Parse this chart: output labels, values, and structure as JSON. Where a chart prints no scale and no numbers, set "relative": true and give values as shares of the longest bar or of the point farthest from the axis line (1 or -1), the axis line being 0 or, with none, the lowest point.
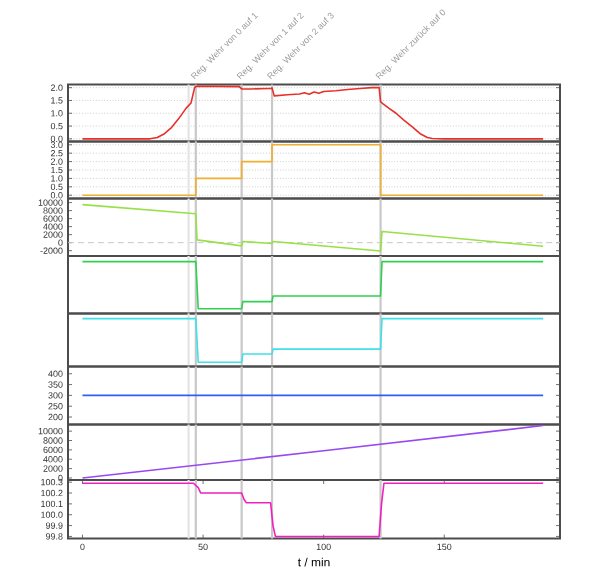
{
  "chart_data": [
    {
      "type": "line",
      "xlim": [
        -6,
        198
      ],
      "ylim": [
        -0.1,
        2.12
      ],
      "yticks": [
        {
          "value": 0,
          "label": "0.0"
        },
        {
          "value": 0.5,
          "label": "0.5"
        },
        {
          "value": 1,
          "label": "1.0"
        },
        {
          "value": 1.5,
          "label": "1.5"
        },
        {
          "value": 2,
          "label": "2.0"
        }
      ],
      "grid": "y",
      "tick_labels": "y",
      "series": [
        {
          "color": "#e8302a",
          "x": [
            0,
            28,
            31,
            34,
            37,
            40,
            43,
            45,
            46.5,
            47,
            55,
            65,
            66,
            70,
            77,
            78,
            78.6,
            79.5,
            85,
            90,
            92,
            94,
            96,
            98,
            100,
            105,
            110,
            115,
            120,
            123,
            123.6,
            124.5,
            127,
            130,
            133,
            137,
            140,
            143,
            145,
            150,
            170,
            191
          ],
          "values": [
            0,
            0,
            0.05,
            0.2,
            0.45,
            0.8,
            1.2,
            1.4,
            2.0,
            2.05,
            2.05,
            2.04,
            1.95,
            1.95,
            1.97,
            1.97,
            1.99,
            1.68,
            1.72,
            1.75,
            1.8,
            1.74,
            1.83,
            1.78,
            1.85,
            1.88,
            1.93,
            1.97,
            2.0,
            2.0,
            1.45,
            1.38,
            1.2,
            1.0,
            0.75,
            0.45,
            0.2,
            0.05,
            0.01,
            0,
            0,
            0
          ]
        }
      ],
      "ref_lines": [
        {
          "axis": "x",
          "value": 44,
          "color": "#e4e4e4"
        },
        {
          "axis": "x",
          "value": 47,
          "label": "Reg. Wehr von 0 auf 1",
          "color": "#c8c8c8"
        },
        {
          "axis": "x",
          "value": 66,
          "label": "Reg. Wehr von 1 auf 2",
          "color": "#c8c8c8"
        },
        {
          "axis": "x",
          "value": 78.6,
          "label": "Reg. Wehr von 2 auf 3",
          "color": "#c8c8c8"
        },
        {
          "axis": "x",
          "value": 123.6,
          "label": "Reg. Wehr zurück auf 0",
          "color": "#c8c8c8"
        }
      ]
    },
    {
      "type": "step",
      "xlim": [
        -6,
        198
      ],
      "ylim": [
        -0.2,
        3.2
      ],
      "yticks": [
        {
          "value": 0,
          "label": "0.0"
        },
        {
          "value": 0.5,
          "label": "0.5"
        },
        {
          "value": 1,
          "label": "1.0"
        },
        {
          "value": 1.5,
          "label": "1.5"
        },
        {
          "value": 2,
          "label": "2.0"
        },
        {
          "value": 2.5,
          "label": "2.5"
        },
        {
          "value": 3,
          "label": "3.0"
        }
      ],
      "grid": "y",
      "tick_labels": "y",
      "series": [
        {
          "color": "#f0b030",
          "x": [
            0,
            47,
            66,
            78.6,
            123.6,
            191
          ],
          "values": [
            0,
            1,
            2,
            3,
            0,
            0
          ]
        }
      ],
      "ref_lines": [
        {
          "axis": "x",
          "value": 44,
          "color": "#e4e4e4"
        },
        {
          "axis": "x",
          "value": 47,
          "color": "#c8c8c8"
        },
        {
          "axis": "x",
          "value": 66,
          "color": "#c8c8c8"
        },
        {
          "axis": "x",
          "value": 78.6,
          "color": "#c8c8c8"
        },
        {
          "axis": "x",
          "value": 123.6,
          "color": "#c8c8c8"
        }
      ]
    },
    {
      "type": "line",
      "xlim": [
        -6,
        198
      ],
      "ylim": [
        -3330,
        11000
      ],
      "yticks": [
        -2000,
        0,
        2000,
        4000,
        6000,
        8000,
        10000
      ],
      "tick_labels": "y",
      "series": [
        {
          "color": "#98e048",
          "x": [
            0,
            47,
            47.5,
            66,
            66.5,
            78.6,
            79,
            123.6,
            124.2,
            191
          ],
          "values": [
            9500,
            7200,
            700,
            -800,
            300,
            -200,
            300,
            -2100,
            2800,
            -900
          ]
        }
      ],
      "ref_lines": [
        {
          "axis": "y",
          "value": 0,
          "color": "#c8c8c8",
          "line_style": "dashed"
        },
        {
          "axis": "x",
          "value": 44,
          "color": "#e4e4e4"
        },
        {
          "axis": "x",
          "value": 47,
          "color": "#c8c8c8"
        },
        {
          "axis": "x",
          "value": 66,
          "color": "#c8c8c8"
        },
        {
          "axis": "x",
          "value": 78.6,
          "color": "#c8c8c8"
        },
        {
          "axis": "x",
          "value": 123.6,
          "color": "#c8c8c8"
        }
      ]
    },
    {
      "type": "line",
      "xlim": [
        -6,
        198
      ],
      "relative": true,
      "tick_labels": false,
      "series": [
        {
          "color": "#30d050",
          "x": [
            0,
            47,
            48,
            66,
            66.5,
            78.6,
            79,
            123.6,
            124.2,
            191
          ],
          "values": [
            1,
            1,
            0,
            0,
            0.15,
            0.15,
            0.27,
            0.27,
            1,
            1
          ]
        }
      ],
      "ref_lines": [
        {
          "axis": "x",
          "value": 44,
          "color": "#e4e4e4"
        },
        {
          "axis": "x",
          "value": 47,
          "color": "#c8c8c8"
        },
        {
          "axis": "x",
          "value": 66,
          "color": "#c8c8c8"
        },
        {
          "axis": "x",
          "value": 78.6,
          "color": "#c8c8c8"
        },
        {
          "axis": "x",
          "value": 123.6,
          "color": "#c8c8c8"
        }
      ]
    },
    {
      "type": "line",
      "xlim": [
        -6,
        198
      ],
      "relative": true,
      "tick_labels": false,
      "series": [
        {
          "color": "#40e0e8",
          "x": [
            0,
            47,
            48,
            66,
            66.5,
            78.6,
            79,
            123.6,
            124.2,
            191
          ],
          "values": [
            1,
            1,
            0,
            0,
            0.19,
            0.19,
            0.3,
            0.3,
            1,
            1
          ]
        }
      ],
      "ref_lines": [
        {
          "axis": "x",
          "value": 44,
          "color": "#e4e4e4"
        },
        {
          "axis": "x",
          "value": 47,
          "color": "#c8c8c8"
        },
        {
          "axis": "x",
          "value": 66,
          "color": "#c8c8c8"
        },
        {
          "axis": "x",
          "value": 78.6,
          "color": "#c8c8c8"
        },
        {
          "axis": "x",
          "value": 123.6,
          "color": "#c8c8c8"
        }
      ]
    },
    {
      "type": "line",
      "xlim": [
        -6,
        198
      ],
      "ylim": [
        165,
        433
      ],
      "yticks": [
        200,
        250,
        300,
        350,
        400
      ],
      "tick_labels": "y",
      "series": [
        {
          "color": "#3060f0",
          "x": [
            0,
            191
          ],
          "values": [
            300,
            300
          ]
        }
      ],
      "ref_lines": [
        {
          "axis": "x",
          "value": 44,
          "color": "#e4e4e4"
        },
        {
          "axis": "x",
          "value": 47,
          "color": "#c8c8c8"
        },
        {
          "axis": "x",
          "value": 66,
          "color": "#c8c8c8"
        },
        {
          "axis": "x",
          "value": 78.6,
          "color": "#c8c8c8"
        },
        {
          "axis": "x",
          "value": 123.6,
          "color": "#c8c8c8"
        }
      ]
    },
    {
      "type": "line",
      "xlim": [
        -6,
        198
      ],
      "ylim": [
        -430,
        11400
      ],
      "yticks": [
        0,
        2000,
        4000,
        6000,
        8000,
        10000
      ],
      "tick_labels": "y",
      "series": [
        {
          "color": "#9848f0",
          "x": [
            0,
            100,
            191
          ],
          "values": [
            0,
            5800,
            11200
          ]
        }
      ],
      "ref_lines": [
        {
          "axis": "x",
          "value": 44,
          "color": "#e4e4e4"
        },
        {
          "axis": "x",
          "value": 47,
          "color": "#c8c8c8"
        },
        {
          "axis": "x",
          "value": 66,
          "color": "#c8c8c8"
        },
        {
          "axis": "x",
          "value": 78.6,
          "color": "#c8c8c8"
        },
        {
          "axis": "x",
          "value": 123.6,
          "color": "#c8c8c8"
        }
      ]
    },
    {
      "type": "line",
      "xlim": [
        -6,
        198
      ],
      "xticks": [
        0,
        50,
        100,
        150
      ],
      "xlabel": "t / min",
      "ylim": [
        99.78,
        100.32
      ],
      "yticks": [
        {
          "value": 99.8,
          "label": "99.8"
        },
        {
          "value": 99.9,
          "label": "99.9"
        },
        {
          "value": 100,
          "label": "100.0"
        },
        {
          "value": 100.1,
          "label": "100.1"
        },
        {
          "value": 100.2,
          "label": "100.2"
        },
        {
          "value": 100.3,
          "label": "100.3"
        }
      ],
      "series": [
        {
          "color": "#f020c0",
          "x": [
            0,
            46,
            48,
            49,
            66,
            67,
            68,
            78,
            79,
            80,
            123,
            124,
            125,
            191
          ],
          "values": [
            100.29,
            100.29,
            100.25,
            100.2,
            100.2,
            100.14,
            100.11,
            100.11,
            99.9,
            99.8,
            99.8,
            100.1,
            100.29,
            100.29
          ]
        }
      ],
      "ref_lines": [
        {
          "axis": "x",
          "value": 44,
          "color": "#e4e4e4"
        },
        {
          "axis": "x",
          "value": 47,
          "color": "#c8c8c8"
        },
        {
          "axis": "x",
          "value": 66,
          "color": "#c8c8c8"
        },
        {
          "axis": "x",
          "value": 78.6,
          "color": "#c8c8c8"
        },
        {
          "axis": "x",
          "value": 123.6,
          "color": "#c8c8c8"
        }
      ]
    }
  ]
}
